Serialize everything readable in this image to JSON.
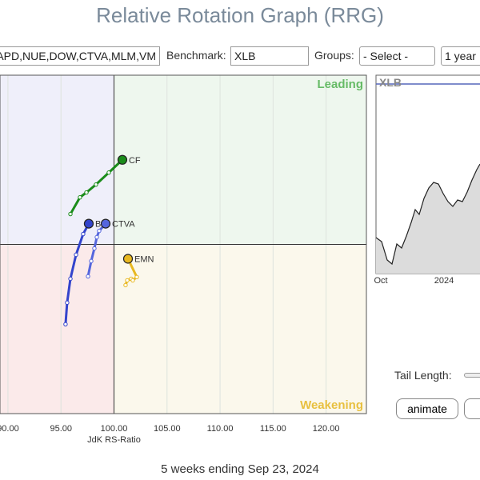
{
  "header": {
    "title": "Relative Rotation Graph (RRG)"
  },
  "controls": {
    "symbols": "APD,NUE,DOW,CTVA,MLM,VM",
    "benchmark_label": "Benchmark:",
    "benchmark": "XLB",
    "groups_label": "Groups:",
    "groups": "- Select -",
    "period": "1 year",
    "tail_length_label": "Tail Length:",
    "animate": "animate"
  },
  "chart_data": {
    "type": "line",
    "xlabel": "JdK RS-Ratio",
    "xlim": [
      89.25,
      123.8
    ],
    "ylim": [
      84,
      116
    ],
    "xticks": [
      {
        "value": 90,
        "label": "90.00"
      },
      {
        "value": 95,
        "label": "95.00"
      },
      {
        "value": 100,
        "label": "100.00"
      },
      {
        "value": 105,
        "label": "105.00"
      },
      {
        "value": 110,
        "label": "110.00"
      },
      {
        "value": 115,
        "label": "115.00"
      },
      {
        "value": 120,
        "label": "120.00"
      }
    ],
    "quadrants": {
      "leading": "Leading",
      "weakening": "Weakening"
    },
    "series": [
      {
        "name": "CF",
        "color": "#1a8c1a",
        "x": [
          95.89,
          96.79,
          97.4,
          98.3,
          99.51,
          100.79
        ],
        "values": [
          102.87,
          104.45,
          104.91,
          105.66,
          106.79,
          108.0
        ]
      },
      {
        "name": "B",
        "color": "#3344cc",
        "x": [
          95.43,
          95.58,
          95.89,
          96.42,
          97.09,
          97.62
        ],
        "values": [
          92.45,
          94.49,
          96.75,
          99.02,
          100.98,
          101.96
        ]
      },
      {
        "name": "CTVA",
        "color": "#5566dd",
        "x": [
          97.55,
          97.85,
          98.15,
          98.38,
          98.6,
          99.21
        ],
        "values": [
          96.98,
          98.42,
          99.62,
          100.68,
          101.28,
          101.96
        ]
      },
      {
        "name": "EMN",
        "color": "#e8b820",
        "x": [
          101.09,
          101.25,
          101.62,
          101.77,
          102.15,
          101.32
        ],
        "values": [
          96.15,
          96.6,
          96.75,
          96.6,
          96.91,
          98.64
        ]
      }
    ]
  },
  "mini_chart": {
    "symbol": "XLB",
    "xticks": [
      "Oct",
      "2024"
    ]
  },
  "footer": "5 weeks ending Sep 23, 2024"
}
